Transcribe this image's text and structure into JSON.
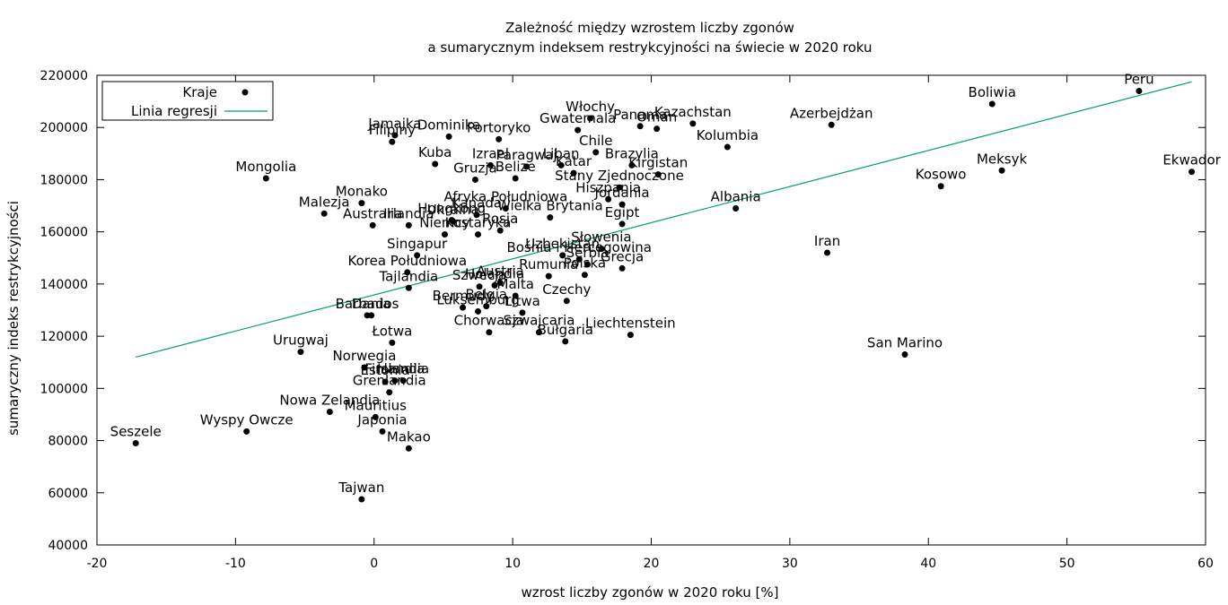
{
  "chart_data": {
    "type": "scatter",
    "title": [
      "Zależność między wzrostem liczby zgonów",
      "a sumarycznym indeksem restrykcyjności na świecie w 2020 roku"
    ],
    "xlabel": "wzrost liczby zgonów w 2020 roku [%]",
    "ylabel": "sumaryczny indeks restrykcyjności",
    "xlim": [
      -20,
      60
    ],
    "ylim": [
      40000,
      220000
    ],
    "xticks": [
      "-20",
      "-10",
      "0",
      "10",
      "20",
      "30",
      "40",
      "50",
      "60"
    ],
    "yticks": [
      "40000",
      "60000",
      "80000",
      "100000",
      "120000",
      "140000",
      "160000",
      "180000",
      "200000",
      "220000"
    ],
    "legend_position": "top-left",
    "colors": {
      "points": "#000000",
      "regression": "#009e73"
    },
    "series": [
      {
        "name": "Kraje",
        "points": [
          {
            "label": "Peru",
            "x": 55.2,
            "y": 214000
          },
          {
            "label": "Boliwia",
            "x": 44.6,
            "y": 209000
          },
          {
            "label": "Ekwador",
            "x": 59.0,
            "y": 183000
          },
          {
            "label": "Meksyk",
            "x": 45.3,
            "y": 183500
          },
          {
            "label": "Kosowo",
            "x": 40.9,
            "y": 177500
          },
          {
            "label": "Azerbejdżan",
            "x": 33.0,
            "y": 201000
          },
          {
            "label": "Kazachstan",
            "x": 23.0,
            "y": 201500
          },
          {
            "label": "Kolumbia",
            "x": 25.5,
            "y": 192500
          },
          {
            "label": "Albania",
            "x": 26.1,
            "y": 169000
          },
          {
            "label": "Iran",
            "x": 32.7,
            "y": 152000
          },
          {
            "label": "San Marino",
            "x": 38.3,
            "y": 113000
          },
          {
            "label": "Włochy",
            "x": 15.6,
            "y": 203500
          },
          {
            "label": "Panama",
            "x": 19.2,
            "y": 200500
          },
          {
            "label": "Oman",
            "x": 20.4,
            "y": 199500
          },
          {
            "label": "Gwatemala",
            "x": 14.7,
            "y": 199000
          },
          {
            "label": "Chile",
            "x": 16.0,
            "y": 190500
          },
          {
            "label": "Brazylia",
            "x": 18.6,
            "y": 185500
          },
          {
            "label": "Kirgistan",
            "x": 20.5,
            "y": 182000
          },
          {
            "label": "Stany Zjednoczone",
            "x": 17.7,
            "y": 177000
          },
          {
            "label": "Hiszpania",
            "x": 16.9,
            "y": 172500
          },
          {
            "label": "Jordania",
            "x": 17.9,
            "y": 170500
          },
          {
            "label": "Egipt",
            "x": 17.9,
            "y": 163000
          },
          {
            "label": "Liban",
            "x": 13.5,
            "y": 185500
          },
          {
            "label": "Katar",
            "x": 14.4,
            "y": 182500
          },
          {
            "label": "Paragwaj",
            "x": 11.0,
            "y": 185000
          },
          {
            "label": "Portoryko",
            "x": 9.0,
            "y": 195500
          },
          {
            "label": "Dominika",
            "x": 5.4,
            "y": 196500
          },
          {
            "label": "Jamajka",
            "x": 1.5,
            "y": 197000
          },
          {
            "label": "Filipiny",
            "x": 1.3,
            "y": 194500
          },
          {
            "label": "Kuba",
            "x": 4.4,
            "y": 186000
          },
          {
            "label": "Izrael",
            "x": 8.4,
            "y": 185500
          },
          {
            "label": "Gruzja",
            "x": 7.3,
            "y": 180000
          },
          {
            "label": "Belize",
            "x": 10.2,
            "y": 180500
          },
          {
            "label": "Mongolia",
            "x": -7.8,
            "y": 180500
          },
          {
            "label": "Monako",
            "x": -0.9,
            "y": 171000
          },
          {
            "label": "Malezja",
            "x": -3.6,
            "y": 167000
          },
          {
            "label": "Australia",
            "x": -0.1,
            "y": 162500
          },
          {
            "label": "Irlandia",
            "x": 2.5,
            "y": 162500
          },
          {
            "label": "Afryka Południowa",
            "x": 9.5,
            "y": 169000
          },
          {
            "label": "Wielka Brytania",
            "x": 12.7,
            "y": 165500
          },
          {
            "label": "Ukraina",
            "x": 5.7,
            "y": 164000
          },
          {
            "label": "Kanada",
            "x": 7.4,
            "y": 166500
          },
          {
            "label": "Hongkong",
            "x": 5.6,
            "y": 164500
          },
          {
            "label": "Kostaryka",
            "x": 7.5,
            "y": 159000
          },
          {
            "label": "Rosja",
            "x": 9.1,
            "y": 160500
          },
          {
            "label": "Niemcy",
            "x": 5.1,
            "y": 159000
          },
          {
            "label": "Singapur",
            "x": 3.1,
            "y": 151000
          },
          {
            "label": "Słowenia",
            "x": 16.4,
            "y": 153500
          },
          {
            "label": "Uzbekistan",
            "x": 13.6,
            "y": 151000
          },
          {
            "label": "Bośnia i Hercegowina",
            "x": 14.8,
            "y": 149500
          },
          {
            "label": "Serbia",
            "x": 15.4,
            "y": 147500
          },
          {
            "label": "Grecja",
            "x": 17.9,
            "y": 146000
          },
          {
            "label": "Rumunia",
            "x": 12.6,
            "y": 143000
          },
          {
            "label": "Polska",
            "x": 15.2,
            "y": 143500
          },
          {
            "label": "Korea Południowa",
            "x": 2.4,
            "y": 144500
          },
          {
            "label": "Tajlandia",
            "x": 2.5,
            "y": 138500
          },
          {
            "label": "Holandia",
            "x": 8.7,
            "y": 139500
          },
          {
            "label": "Austria",
            "x": 9.1,
            "y": 140500
          },
          {
            "label": "Szwecja",
            "x": 7.6,
            "y": 139000
          },
          {
            "label": "Malta",
            "x": 10.2,
            "y": 135500
          },
          {
            "label": "Czechy",
            "x": 13.9,
            "y": 133500
          },
          {
            "label": "Bermudy",
            "x": 6.4,
            "y": 131000
          },
          {
            "label": "Luksemburg",
            "x": 7.5,
            "y": 129500
          },
          {
            "label": "Litwa",
            "x": 10.7,
            "y": 129000
          },
          {
            "label": "Belgia",
            "x": 8.1,
            "y": 131500
          },
          {
            "label": "Chorwacja",
            "x": 8.3,
            "y": 121500
          },
          {
            "label": "Szwajcaria",
            "x": 11.9,
            "y": 121500
          },
          {
            "label": "Bułgaria",
            "x": 13.8,
            "y": 118000
          },
          {
            "label": "Liechtenstein",
            "x": 18.5,
            "y": 120500
          },
          {
            "label": "Barbados",
            "x": -0.5,
            "y": 128000
          },
          {
            "label": "Dania",
            "x": -0.2,
            "y": 128000
          },
          {
            "label": "Łotwa",
            "x": 1.3,
            "y": 117500
          },
          {
            "label": "Urugwaj",
            "x": -5.3,
            "y": 114000
          },
          {
            "label": "Norwegia",
            "x": -0.7,
            "y": 108000
          },
          {
            "label": "Islandia",
            "x": 2.1,
            "y": 103000
          },
          {
            "label": "Finlandia",
            "x": 1.5,
            "y": 103000
          },
          {
            "label": "Estonia",
            "x": 0.8,
            "y": 102500
          },
          {
            "label": "Grenlandia",
            "x": 1.1,
            "y": 98500
          },
          {
            "label": "Nowa Zelandia",
            "x": -3.2,
            "y": 91000
          },
          {
            "label": "Mauritius",
            "x": 0.1,
            "y": 89000
          },
          {
            "label": "Japonia",
            "x": 0.6,
            "y": 83500
          },
          {
            "label": "Makao",
            "x": 2.5,
            "y": 77000
          },
          {
            "label": "Wyspy Owcze",
            "x": -9.2,
            "y": 83500
          },
          {
            "label": "Seszele",
            "x": -17.2,
            "y": 79000
          },
          {
            "label": "Tajwan",
            "x": -0.9,
            "y": 57500
          }
        ]
      },
      {
        "name": "Linia regresji",
        "line": {
          "x": [
            -17.2,
            59.0
          ],
          "y": [
            112000,
            217500
          ]
        }
      }
    ]
  }
}
